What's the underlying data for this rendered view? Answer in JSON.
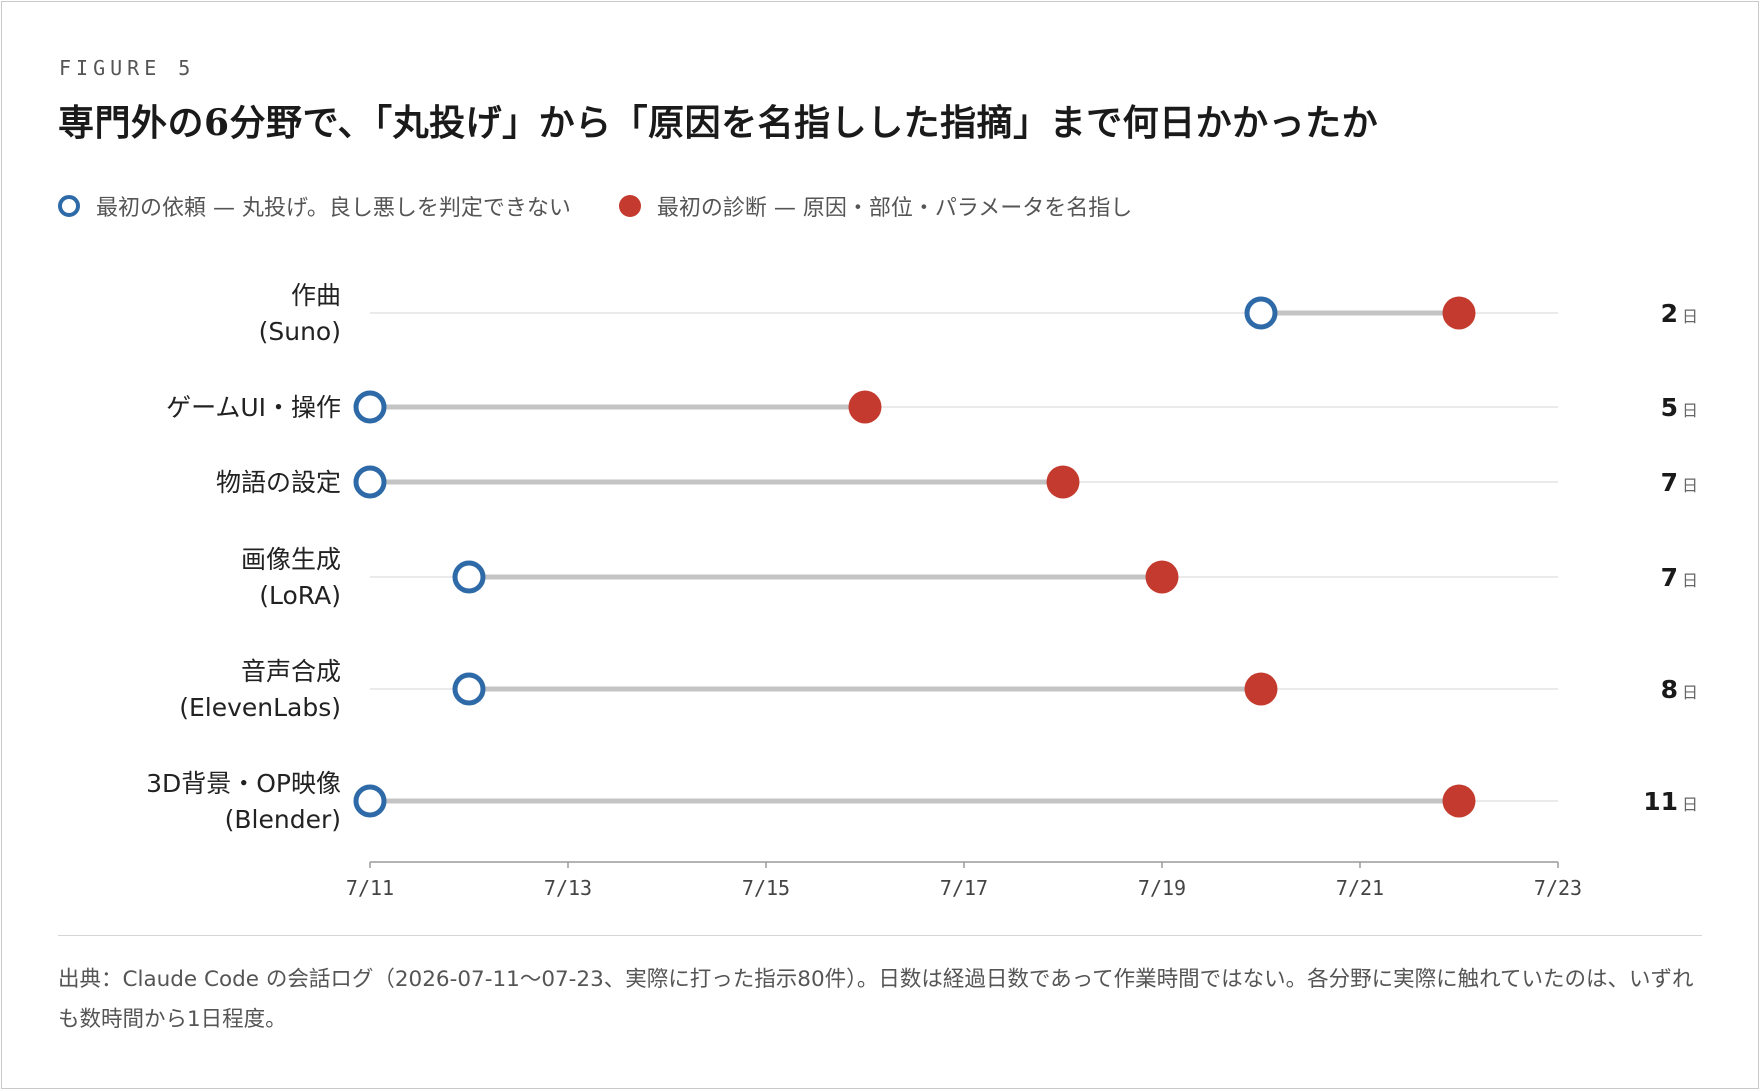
{
  "figure_label": "FIGURE 5",
  "title": "専門外の6分野で、「丸投げ」から「原因を名指しした指摘」まで何日かかったか",
  "legend": [
    {
      "marker": "open-circle",
      "color": "#2e6aa8",
      "label": "最初の依頼 — 丸投げ。良し悪しを判定できない"
    },
    {
      "marker": "filled-circle",
      "color": "#c53a2e",
      "label": "最初の診断 — 原因・部位・パラメータを名指し"
    }
  ],
  "chart_data": {
    "type": "dumbbell",
    "x_axis": {
      "type": "date",
      "range": [
        "7/11",
        "7/23"
      ],
      "ticks": [
        "7/11",
        "7/13",
        "7/15",
        "7/17",
        "7/19",
        "7/21",
        "7/23"
      ]
    },
    "grid": false,
    "day_unit": "日",
    "rows": [
      {
        "label_lines": [
          "作曲",
          "(Suno)"
        ],
        "start": "7/20",
        "end": "7/22",
        "days": "2"
      },
      {
        "label_lines": [
          "ゲームUI・操作"
        ],
        "start": "7/11",
        "end": "7/16",
        "days": "5"
      },
      {
        "label_lines": [
          "物語の設定"
        ],
        "start": "7/11",
        "end": "7/18",
        "days": "7"
      },
      {
        "label_lines": [
          "画像生成",
          "(LoRA)"
        ],
        "start": "7/12",
        "end": "7/19",
        "days": "7"
      },
      {
        "label_lines": [
          "音声合成",
          "(ElevenLabs)"
        ],
        "start": "7/12",
        "end": "7/20",
        "days": "8"
      },
      {
        "label_lines": [
          "3D背景・OP映像",
          "(Blender)"
        ],
        "start": "7/11",
        "end": "7/22",
        "days": "11"
      }
    ],
    "colors": {
      "start": "#2e6aa8",
      "end": "#c53a2e",
      "connector": "#c4c4c4",
      "guide": "#e3e3e3"
    }
  },
  "source_note": "出典：Claude Code の会話ログ（2026-07-11〜07-23、実際に打った指示80件）。日数は経過日数であって作業時間ではない。各分野に実際に触れていたのは、いずれも数時間から1日程度。"
}
